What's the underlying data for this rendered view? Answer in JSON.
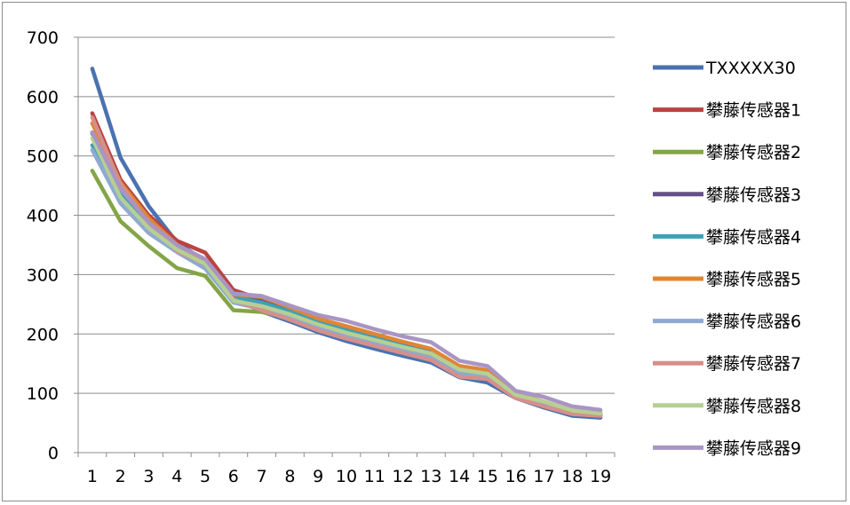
{
  "chart_data": {
    "type": "line",
    "title": "",
    "xlabel": "",
    "ylabel": "",
    "ylim": [
      0,
      700
    ],
    "yticks": [
      0,
      100,
      200,
      300,
      400,
      500,
      600,
      700
    ],
    "grid": true,
    "legend_position": "right",
    "categories": [
      "1",
      "2",
      "3",
      "4",
      "5",
      "6",
      "7",
      "8",
      "9",
      "10",
      "11",
      "12",
      "13",
      "14",
      "15",
      "16",
      "17",
      "18",
      "19"
    ],
    "series": [
      {
        "name": "TXXXXX30",
        "color": "#4a72b0",
        "values": [
          647,
          497,
          415,
          354,
          323,
          261,
          238,
          221,
          203,
          188,
          175,
          163,
          152,
          127,
          118,
          92,
          76,
          62,
          59
        ]
      },
      {
        "name": "攀藤传感器1",
        "color": "#b94441",
        "values": [
          572,
          460,
          400,
          357,
          337,
          274,
          258,
          241,
          222,
          210,
          197,
          185,
          172,
          143,
          137,
          98,
          84,
          70,
          65
        ]
      },
      {
        "name": "攀藤传感器2",
        "color": "#84a547",
        "values": [
          475,
          390,
          348,
          311,
          298,
          240,
          237,
          227,
          212,
          197,
          185,
          174,
          162,
          136,
          130,
          96,
          82,
          67,
          63
        ]
      },
      {
        "name": "攀藤传感器3",
        "color": "#65508a",
        "values": [
          538,
          450,
          390,
          348,
          322,
          266,
          256,
          240,
          222,
          207,
          194,
          180,
          169,
          141,
          134,
          98,
          84,
          70,
          65
        ]
      },
      {
        "name": "攀藤传感器4",
        "color": "#3ea1b5",
        "values": [
          518,
          440,
          383,
          345,
          315,
          262,
          253,
          238,
          220,
          206,
          193,
          180,
          168,
          140,
          134,
          97,
          83,
          68,
          64
        ]
      },
      {
        "name": "攀藤传感器5",
        "color": "#df8633",
        "values": [
          555,
          455,
          395,
          350,
          325,
          267,
          262,
          245,
          226,
          213,
          200,
          187,
          175,
          146,
          139,
          100,
          86,
          71,
          67
        ]
      },
      {
        "name": "攀藤传感器6",
        "color": "#8fa9d1",
        "values": [
          510,
          420,
          370,
          338,
          310,
          253,
          242,
          228,
          211,
          197,
          185,
          172,
          160,
          134,
          128,
          94,
          80,
          66,
          62
        ]
      },
      {
        "name": "攀藤传感器7",
        "color": "#d68f8b",
        "values": [
          565,
          452,
          385,
          340,
          318,
          258,
          240,
          224,
          206,
          192,
          180,
          168,
          156,
          128,
          124,
          92,
          78,
          65,
          62
        ]
      },
      {
        "name": "攀藤传感器8",
        "color": "#b6cf93",
        "values": [
          530,
          430,
          378,
          342,
          318,
          256,
          247,
          233,
          216,
          202,
          190,
          178,
          167,
          140,
          133,
          97,
          86,
          71,
          66
        ]
      },
      {
        "name": "攀藤传感器9",
        "color": "#a995c4",
        "values": [
          540,
          445,
          388,
          350,
          326,
          268,
          264,
          248,
          232,
          222,
          208,
          196,
          186,
          155,
          146,
          104,
          94,
          78,
          72
        ]
      }
    ]
  }
}
